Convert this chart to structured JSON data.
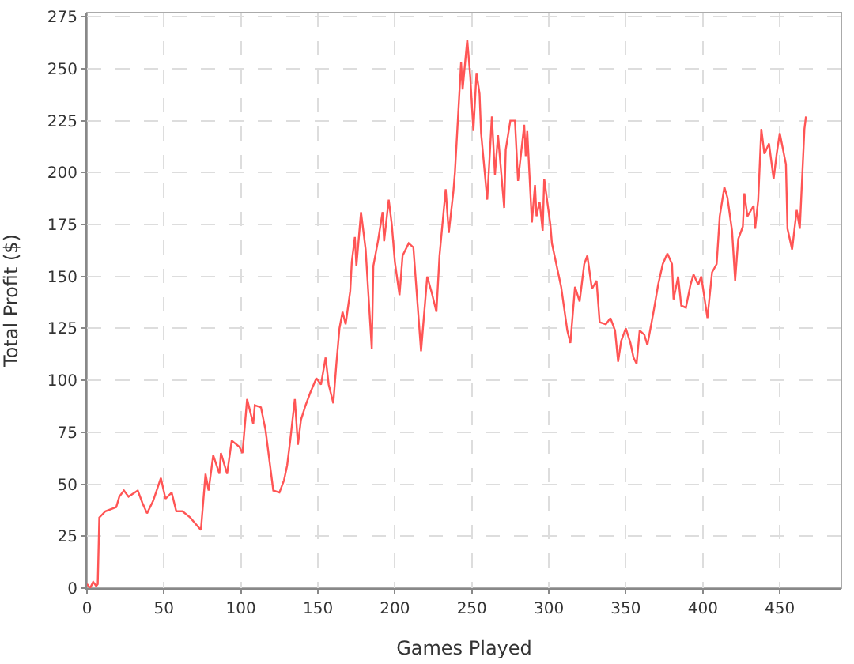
{
  "chart_data": {
    "type": "line",
    "xlabel": "Games Played",
    "ylabel": "Total Profit ($)",
    "xlim": [
      0,
      490
    ],
    "ylim": [
      0,
      277
    ],
    "xticks": [
      0,
      50,
      100,
      150,
      200,
      250,
      300,
      350,
      400,
      450
    ],
    "yticks": [
      0,
      25,
      50,
      75,
      100,
      125,
      150,
      175,
      200,
      225,
      250,
      275
    ],
    "grid": true,
    "line_style": "solid",
    "series": [
      {
        "color": "#ff5555",
        "x": [
          0,
          2,
          4,
          6,
          7,
          8,
          12,
          19,
          21,
          24,
          27,
          33,
          36,
          39,
          43,
          48,
          51,
          55,
          58,
          62,
          67,
          74,
          77,
          79,
          82,
          86,
          87,
          91,
          94,
          99,
          101,
          104,
          108,
          109,
          113,
          116,
          121,
          125,
          128,
          130,
          132,
          135,
          137,
          139,
          142,
          145,
          149,
          152,
          155,
          157,
          160,
          162,
          164,
          166,
          168,
          171,
          172,
          174,
          175,
          178,
          181,
          185,
          186,
          189,
          192,
          193,
          196,
          198,
          200,
          203,
          205,
          209,
          212,
          217,
          221,
          224,
          227,
          229,
          233,
          235,
          238,
          239,
          243,
          244,
          247,
          249,
          251,
          253,
          255,
          256,
          260,
          263,
          265,
          267,
          271,
          272,
          275,
          278,
          280,
          284,
          285,
          286,
          289,
          291,
          292,
          294,
          296,
          297,
          299,
          301,
          302,
          308,
          312,
          314,
          317,
          320,
          323,
          325,
          328,
          331,
          333,
          337,
          340,
          343,
          345,
          347,
          350,
          353,
          355,
          357,
          359,
          362,
          364,
          368,
          371,
          374,
          377,
          380,
          381,
          384,
          386,
          389,
          392,
          394,
          397,
          399,
          403,
          406,
          409,
          411,
          414,
          416,
          419,
          421,
          423,
          426,
          427,
          429,
          433,
          434,
          436,
          438,
          440,
          443,
          446,
          448,
          450,
          454,
          455,
          458,
          461,
          463,
          466,
          467
        ],
        "values": [
          2,
          0,
          3,
          1,
          2,
          34,
          37,
          39,
          44,
          47,
          44,
          47,
          41,
          36,
          42,
          53,
          43,
          46,
          37,
          37,
          34,
          28,
          55,
          47,
          64,
          55,
          65,
          55,
          71,
          68,
          65,
          91,
          79,
          88,
          87,
          76,
          47,
          46,
          52,
          59,
          71,
          91,
          69,
          81,
          88,
          94,
          101,
          98,
          111,
          98,
          89,
          108,
          125,
          133,
          127,
          143,
          157,
          169,
          155,
          181,
          163,
          115,
          155,
          167,
          181,
          167,
          187,
          175,
          157,
          141,
          160,
          166,
          164,
          114,
          150,
          142,
          133,
          160,
          192,
          171,
          191,
          200,
          253,
          240,
          264,
          246,
          220,
          248,
          238,
          219,
          187,
          227,
          199,
          218,
          183,
          211,
          225,
          225,
          196,
          223,
          208,
          220,
          176,
          194,
          179,
          186,
          172,
          197,
          186,
          175,
          166,
          145,
          124,
          118,
          145,
          138,
          156,
          160,
          144,
          148,
          128,
          127,
          130,
          124,
          109,
          119,
          125,
          118,
          111,
          108,
          124,
          122,
          117,
          133,
          146,
          156,
          161,
          156,
          139,
          150,
          136,
          135,
          146,
          151,
          146,
          150,
          130,
          152,
          156,
          179,
          193,
          188,
          172,
          148,
          168,
          174,
          190,
          179,
          184,
          173,
          187,
          221,
          209,
          214,
          197,
          209,
          219,
          204,
          173,
          163,
          182,
          173,
          221,
          227
        ]
      }
    ]
  }
}
